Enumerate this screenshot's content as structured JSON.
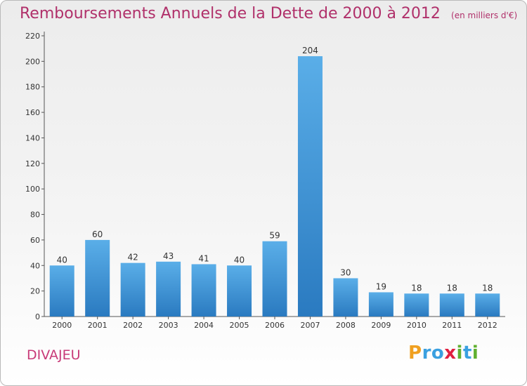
{
  "chart_data": {
    "type": "bar",
    "title": "Remboursements Annuels de la Dette de 2000 à 2012",
    "unit": "(en milliers d'€)",
    "categories": [
      "2000",
      "2001",
      "2002",
      "2003",
      "2004",
      "2005",
      "2006",
      "2007",
      "2008",
      "2009",
      "2010",
      "2011",
      "2012"
    ],
    "values": [
      40,
      60,
      42,
      43,
      41,
      40,
      59,
      204,
      30,
      19,
      18,
      18,
      18
    ],
    "ylim": [
      0,
      220
    ],
    "yticks": [
      0,
      20,
      40,
      60,
      80,
      100,
      120,
      140,
      160,
      180,
      200,
      220
    ],
    "grid": false,
    "bar_color_top": "#5aaee8",
    "bar_color_bottom": "#2a7ac0"
  },
  "commune": "DIVAJEU",
  "logo": {
    "letters": [
      {
        "ch": "P",
        "color": "#f0a020"
      },
      {
        "ch": "r",
        "color": "#3aa0e0"
      },
      {
        "ch": "o",
        "color": "#3aa0e0"
      },
      {
        "ch": "x",
        "color": "#e02040"
      },
      {
        "ch": "i",
        "color": "#60b030"
      },
      {
        "ch": "t",
        "color": "#3aa0e0"
      },
      {
        "ch": "i",
        "color": "#60b030"
      }
    ]
  }
}
